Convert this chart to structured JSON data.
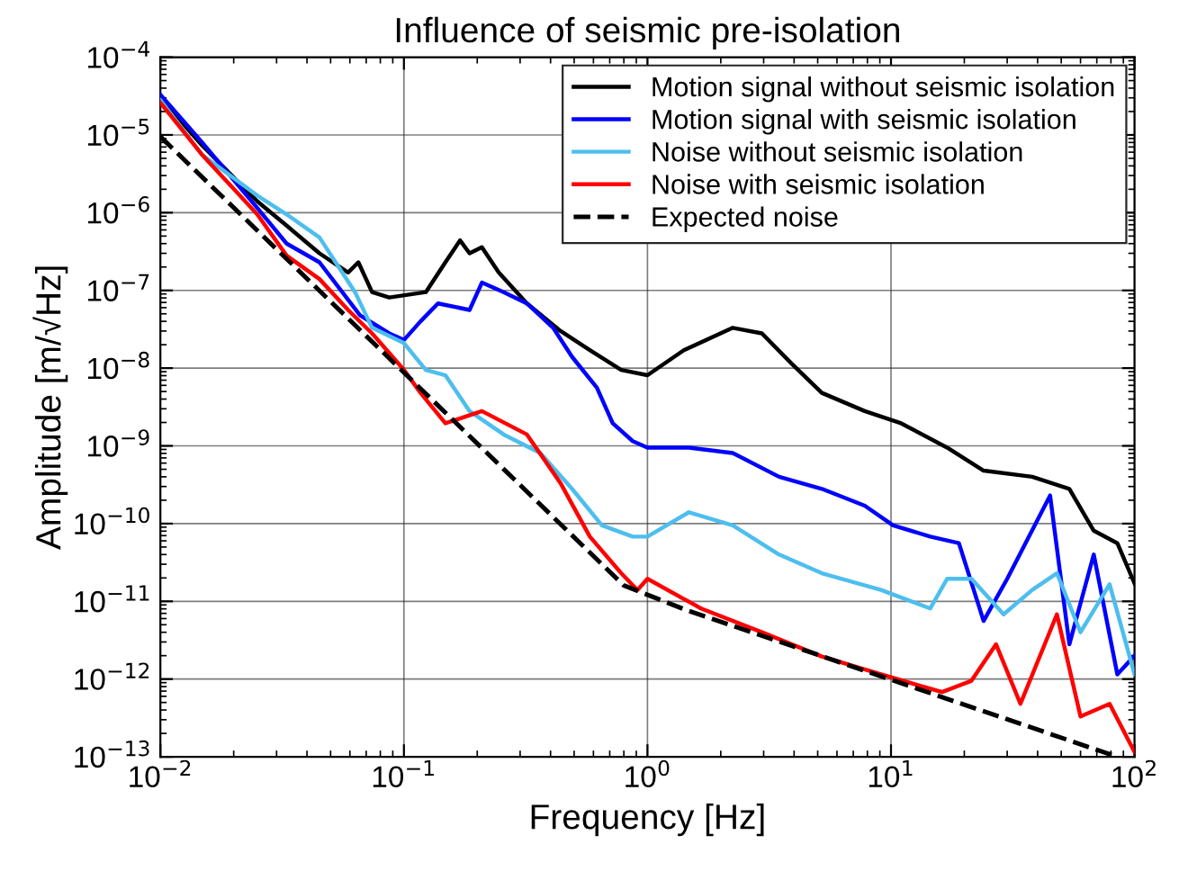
{
  "chart_data": {
    "type": "line",
    "title": "Influence of seismic pre-isolation",
    "xlabel": "Frequency [Hz]",
    "ylabel": "Amplitude [m/√Hz]",
    "log": "xy",
    "grid": true,
    "legend": "top right",
    "line_style": "solid",
    "marker": "none",
    "xlim": [
      0.01,
      100
    ],
    "ylim": [
      1e-13,
      0.0001
    ],
    "xticks": [
      {
        "value": 0.01,
        "label": "10$^{−2}$"
      },
      {
        "value": 0.1,
        "label": "10$^{−1}$"
      },
      {
        "value": 1,
        "label": "10$^{0}$"
      },
      {
        "value": 10,
        "label": "10$^{1}$"
      },
      {
        "value": 100,
        "label": "10$^{2}$"
      }
    ],
    "yticks": [
      {
        "value": 1e-13,
        "label": "10$^{−13}$"
      },
      {
        "value": 1e-12,
        "label": "10$^{−12}$"
      },
      {
        "value": 1e-11,
        "label": "10$^{−11}$"
      },
      {
        "value": 1e-10,
        "label": "10$^{−10}$"
      },
      {
        "value": 1e-09,
        "label": "10$^{−9}$"
      },
      {
        "value": 1e-08,
        "label": "10$^{−8}$"
      },
      {
        "value": 1e-07,
        "label": "10$^{−7}$"
      },
      {
        "value": 1e-06,
        "label": "10$^{−6}$"
      },
      {
        "value": 1e-05,
        "label": "10$^{−5}$"
      },
      {
        "value": 0.0001,
        "label": "10$^{−4}$"
      }
    ],
    "series": [
      {
        "name": "Motion signal without seismic isolation",
        "color": "#000000",
        "x": [
          0.01,
          0.0148,
          0.025,
          0.033,
          0.045,
          0.059,
          0.065,
          0.074,
          0.087,
          0.123,
          0.148,
          0.17,
          0.186,
          0.209,
          0.245,
          0.32,
          0.44,
          0.58,
          0.78,
          1,
          1.41,
          2.24,
          2.95,
          3.9,
          5.2,
          7.8,
          11,
          17,
          24,
          38,
          54,
          68,
          85,
          100
        ],
        "values": [
          3e-05,
          7.4e-06,
          1.4e-06,
          6.8e-07,
          3e-07,
          1.7e-07,
          2.3e-07,
          9.5e-08,
          8.1e-08,
          9.5e-08,
          2.3e-07,
          4.4e-07,
          3e-07,
          3.6e-07,
          1.7e-07,
          6.8e-08,
          3e-08,
          1.7e-08,
          9.5e-09,
          8.1e-09,
          1.7e-08,
          3.3e-08,
          2.8e-08,
          1.15e-08,
          4.8e-09,
          2.8e-09,
          1.95e-09,
          9.5e-10,
          4.8e-10,
          4e-10,
          2.8e-10,
          8.1e-11,
          5.6e-11,
          1.7e-11
        ]
      },
      {
        "name": "Motion signal with seismic isolation",
        "color": "#0000ff",
        "x": [
          0.01,
          0.0148,
          0.025,
          0.033,
          0.045,
          0.066,
          0.087,
          0.1,
          0.117,
          0.138,
          0.186,
          0.209,
          0.257,
          0.32,
          0.41,
          0.49,
          0.62,
          0.72,
          0.87,
          1,
          1.48,
          2.24,
          3.47,
          5.2,
          7.8,
          10.2,
          14.5,
          19,
          24,
          30,
          45,
          54,
          68,
          85,
          100
        ],
        "values": [
          3.3e-05,
          8.1e-06,
          1.15e-06,
          4e-07,
          2.3e-07,
          4.8e-08,
          2.8e-08,
          2.3e-08,
          4e-08,
          6.8e-08,
          5.6e-08,
          1.26e-07,
          9.5e-08,
          6.8e-08,
          3.3e-08,
          1.4e-08,
          5.6e-09,
          1.95e-09,
          1.15e-09,
          9.5e-10,
          9.5e-10,
          8.1e-10,
          4e-10,
          2.8e-10,
          1.7e-10,
          9.5e-11,
          6.8e-11,
          5.6e-11,
          5.6e-12,
          1.95e-11,
          2.3e-10,
          2.8e-12,
          4e-11,
          1.15e-12,
          2e-12
        ]
      },
      {
        "name": "Noise without seismic isolation",
        "color": "#4dbeee",
        "x": [
          0.01,
          0.0148,
          0.025,
          0.033,
          0.045,
          0.063,
          0.074,
          0.1,
          0.123,
          0.148,
          0.186,
          0.257,
          0.363,
          0.49,
          0.65,
          0.87,
          1,
          1.48,
          2.24,
          3.47,
          5.2,
          9.1,
          14.5,
          17,
          21.4,
          29,
          38,
          48,
          60,
          79,
          100
        ],
        "values": [
          2.8e-05,
          5.6e-06,
          1.66e-06,
          9.5e-07,
          4.8e-07,
          9.5e-08,
          3.3e-08,
          2.1e-08,
          9.5e-09,
          8.1e-09,
          2.8e-09,
          1.4e-09,
          8.1e-10,
          2.8e-10,
          9.5e-11,
          6.8e-11,
          6.8e-11,
          1.4e-10,
          9.5e-11,
          4e-11,
          2.3e-11,
          1.4e-11,
          8.1e-12,
          1.95e-11,
          1.95e-11,
          6.8e-12,
          1.4e-11,
          2.3e-11,
          4e-12,
          1.66e-11,
          1.15e-12
        ]
      },
      {
        "name": "Noise with seismic isolation",
        "color": "#ff0000",
        "x": [
          0.01,
          0.0148,
          0.025,
          0.033,
          0.045,
          0.059,
          0.074,
          0.1,
          0.117,
          0.148,
          0.209,
          0.32,
          0.44,
          0.58,
          0.78,
          0.91,
          1,
          1.66,
          2.95,
          5.2,
          9.1,
          16.2,
          21.4,
          27,
          34,
          48,
          60,
          79,
          100
        ],
        "values": [
          2.6e-05,
          5.6e-06,
          9.5e-07,
          2.8e-07,
          1.4e-07,
          5.6e-08,
          2.8e-08,
          9.5e-09,
          4.8e-09,
          1.95e-09,
          2.8e-09,
          1.4e-09,
          3.3e-10,
          6.8e-11,
          2.3e-11,
          1.4e-11,
          1.95e-11,
          8.1e-12,
          4e-12,
          1.95e-12,
          1.15e-12,
          6.8e-13,
          9.5e-13,
          2.8e-12,
          4.8e-13,
          6.8e-12,
          3.3e-13,
          4.8e-13,
          1.15e-13
        ]
      },
      {
        "name": "Expected noise",
        "color": "#000000",
        "line_style": "dashed",
        "x": [
          0.01,
          0.8,
          1.4,
          85
        ],
        "values": [
          9.5e-06,
          1.6e-11,
          8e-12,
          1e-13
        ]
      }
    ]
  }
}
